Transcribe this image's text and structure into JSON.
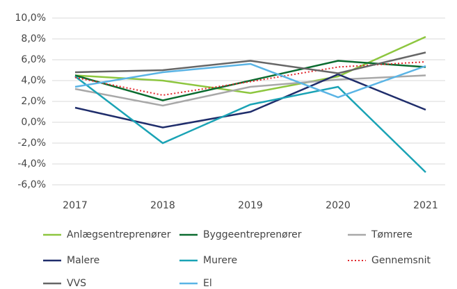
{
  "chart_data": {
    "type": "line",
    "categories": [
      "2017",
      "2018",
      "2019",
      "2020",
      "2021"
    ],
    "ylim": [
      -6,
      10
    ],
    "yticks": [
      {
        "value": -6,
        "label": "-6,0%"
      },
      {
        "value": -4,
        "label": "-4,0%"
      },
      {
        "value": -2,
        "label": "-2,0%"
      },
      {
        "value": 0,
        "label": "0,0%"
      },
      {
        "value": 2,
        "label": "2,0%"
      },
      {
        "value": 4,
        "label": "4,0%"
      },
      {
        "value": 6,
        "label": "6,0%"
      },
      {
        "value": 8,
        "label": "8,0%"
      },
      {
        "value": 10,
        "label": "10,0%"
      }
    ],
    "grid": true,
    "legend": "bottom",
    "series": [
      {
        "name": "Anlægsentreprenører",
        "color": "#8dc63f",
        "values": [
          4.5,
          4.0,
          2.8,
          4.4,
          8.2
        ]
      },
      {
        "name": "Byggeentreprenører",
        "color": "#0a6b2f",
        "values": [
          4.5,
          2.1,
          4.0,
          5.9,
          5.3
        ]
      },
      {
        "name": "Tømrere",
        "color": "#a8a8a8",
        "values": [
          3.2,
          1.6,
          3.4,
          4.1,
          4.5
        ]
      },
      {
        "name": "Malere",
        "color": "#1f2d6b",
        "values": [
          1.4,
          -0.5,
          1.0,
          4.6,
          1.2
        ]
      },
      {
        "name": "Murere",
        "color": "#1aa3b5",
        "values": [
          4.4,
          -2.0,
          1.7,
          3.4,
          -4.8
        ]
      },
      {
        "name": "Gennemsnit",
        "color": "#e0262b",
        "style": "dotted",
        "values": [
          4.3,
          2.6,
          3.9,
          5.3,
          5.8
        ]
      },
      {
        "name": "VVS",
        "color": "#666666",
        "values": [
          4.8,
          5.0,
          5.9,
          4.7,
          6.7
        ]
      },
      {
        "name": "El",
        "color": "#5ab4e5",
        "values": [
          3.4,
          4.8,
          5.6,
          2.4,
          5.4
        ]
      }
    ]
  }
}
